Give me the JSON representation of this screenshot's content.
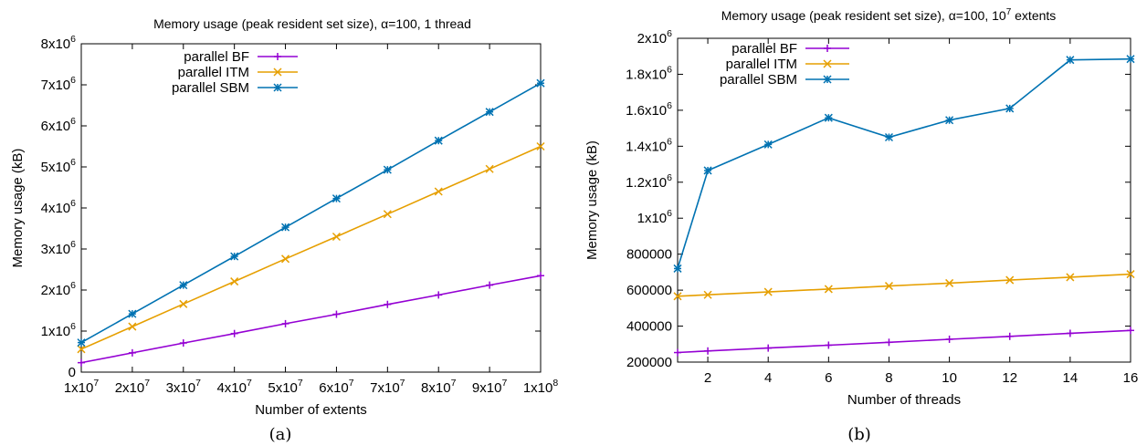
{
  "chart_data": [
    {
      "type": "line",
      "title": "Memory usage (peak resident set size), α=100, 1 thread",
      "xlabel": "Number of extents",
      "ylabel": "Memory usage (kB)",
      "caption": "(a)",
      "xlim": [
        10000000,
        100000000
      ],
      "ylim": [
        0,
        8000000
      ],
      "x_ticks": [
        {
          "v": 10000000,
          "m": "1x10",
          "e": "7"
        },
        {
          "v": 20000000,
          "m": "2x10",
          "e": "7"
        },
        {
          "v": 30000000,
          "m": "3x10",
          "e": "7"
        },
        {
          "v": 40000000,
          "m": "4x10",
          "e": "7"
        },
        {
          "v": 50000000,
          "m": "5x10",
          "e": "7"
        },
        {
          "v": 60000000,
          "m": "6x10",
          "e": "7"
        },
        {
          "v": 70000000,
          "m": "7x10",
          "e": "7"
        },
        {
          "v": 80000000,
          "m": "8x10",
          "e": "7"
        },
        {
          "v": 90000000,
          "m": "9x10",
          "e": "7"
        },
        {
          "v": 100000000,
          "m": "1x10",
          "e": "8"
        }
      ],
      "y_ticks": [
        {
          "v": 0,
          "m": "0",
          "e": ""
        },
        {
          "v": 1000000,
          "m": "1x10",
          "e": "6"
        },
        {
          "v": 2000000,
          "m": "2x10",
          "e": "6"
        },
        {
          "v": 3000000,
          "m": "3x10",
          "e": "6"
        },
        {
          "v": 4000000,
          "m": "4x10",
          "e": "6"
        },
        {
          "v": 5000000,
          "m": "5x10",
          "e": "6"
        },
        {
          "v": 6000000,
          "m": "6x10",
          "e": "6"
        },
        {
          "v": 7000000,
          "m": "7x10",
          "e": "6"
        },
        {
          "v": 8000000,
          "m": "8x10",
          "e": "6"
        }
      ],
      "x": [
        10000000,
        20000000,
        30000000,
        40000000,
        50000000,
        60000000,
        70000000,
        80000000,
        90000000,
        100000000
      ],
      "series": [
        {
          "name": "parallel BF",
          "color": "#9400d3",
          "marker": "plus",
          "values": [
            230000,
            470000,
            710000,
            940000,
            1180000,
            1410000,
            1650000,
            1880000,
            2120000,
            2350000
          ]
        },
        {
          "name": "parallel ITM",
          "color": "#e69f00",
          "marker": "cross",
          "values": [
            560000,
            1110000,
            1660000,
            2210000,
            2760000,
            3300000,
            3850000,
            4400000,
            4950000,
            5500000
          ]
        },
        {
          "name": "parallel SBM",
          "color": "#0072b2",
          "marker": "star",
          "values": [
            720000,
            1420000,
            2120000,
            2820000,
            3530000,
            4230000,
            4930000,
            5640000,
            6340000,
            7040000
          ]
        }
      ],
      "legend": "top-left",
      "grid": false
    },
    {
      "type": "line",
      "title": "Memory usage (peak resident set size), α=100, 10",
      "title_sup": "7",
      "title_tail": " extents",
      "xlabel": "Number of threads",
      "ylabel": "Memory usage (kB)",
      "caption": "(b)",
      "xlim": [
        1,
        16
      ],
      "ylim": [
        200000,
        2000000
      ],
      "x_ticks": [
        {
          "v": 2,
          "m": "2",
          "e": ""
        },
        {
          "v": 4,
          "m": "4",
          "e": ""
        },
        {
          "v": 6,
          "m": "6",
          "e": ""
        },
        {
          "v": 8,
          "m": "8",
          "e": ""
        },
        {
          "v": 10,
          "m": "10",
          "e": ""
        },
        {
          "v": 12,
          "m": "12",
          "e": ""
        },
        {
          "v": 14,
          "m": "14",
          "e": ""
        },
        {
          "v": 16,
          "m": "16",
          "e": ""
        }
      ],
      "y_ticks": [
        {
          "v": 200000,
          "m": "200000",
          "e": ""
        },
        {
          "v": 400000,
          "m": "400000",
          "e": ""
        },
        {
          "v": 600000,
          "m": "600000",
          "e": ""
        },
        {
          "v": 800000,
          "m": "800000",
          "e": ""
        },
        {
          "v": 1000000,
          "m": "1x10",
          "e": "6"
        },
        {
          "v": 1200000,
          "m": "1.2x10",
          "e": "6"
        },
        {
          "v": 1400000,
          "m": "1.4x10",
          "e": "6"
        },
        {
          "v": 1600000,
          "m": "1.6x10",
          "e": "6"
        },
        {
          "v": 1800000,
          "m": "1.8x10",
          "e": "6"
        },
        {
          "v": 2000000,
          "m": "2x10",
          "e": "6"
        }
      ],
      "x": [
        1,
        2,
        4,
        6,
        8,
        10,
        12,
        14,
        16
      ],
      "series": [
        {
          "name": "parallel BF",
          "color": "#9400d3",
          "marker": "plus",
          "values": [
            253000,
            262000,
            278000,
            294000,
            310000,
            327000,
            343000,
            360000,
            376000
          ]
        },
        {
          "name": "parallel ITM",
          "color": "#e69f00",
          "marker": "cross",
          "values": [
            566000,
            574000,
            590000,
            606000,
            623000,
            639000,
            656000,
            672000,
            689000
          ]
        },
        {
          "name": "parallel SBM",
          "color": "#0072b2",
          "marker": "star",
          "values": [
            720000,
            1265000,
            1410000,
            1558000,
            1450000,
            1545000,
            1610000,
            1880000,
            1885000
          ]
        }
      ],
      "legend": "top-left",
      "grid": false
    }
  ]
}
